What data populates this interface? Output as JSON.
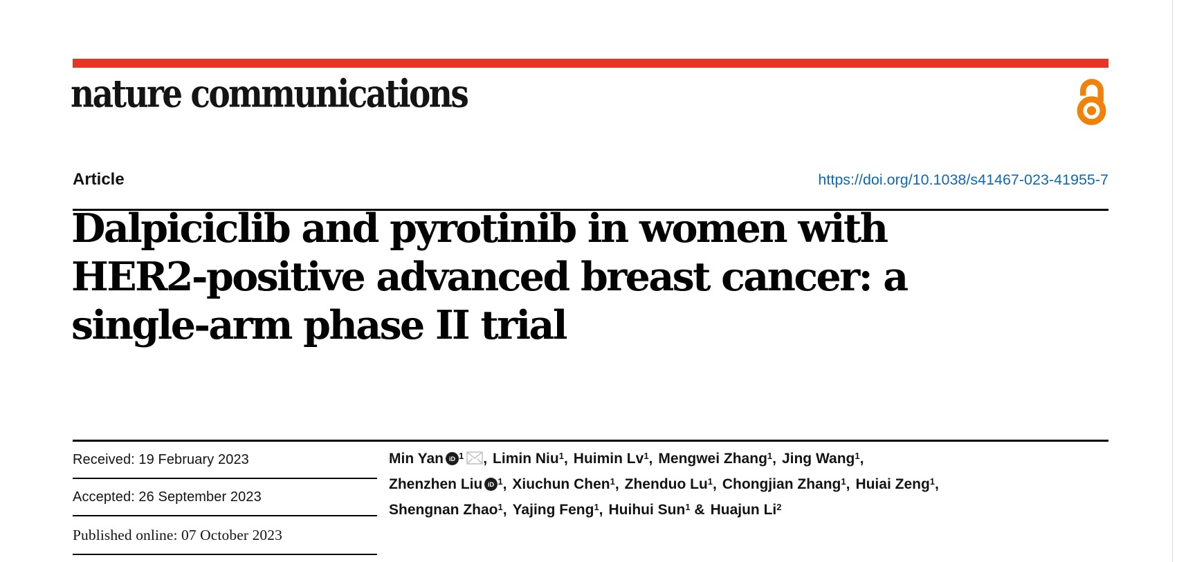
{
  "header": {
    "journal_logo": "nature communications",
    "article_type": "Article",
    "doi": "https://doi.org/10.1038/s41467-023-41955-7"
  },
  "title": {
    "lines": [
      "Dalpiciclib and pyrotinib in women with",
      "HER2-positive advanced breast cancer: a",
      "single-arm phase II trial"
    ]
  },
  "dates": [
    {
      "label": "Received:",
      "value": "19 February 2023"
    },
    {
      "label": "Accepted:",
      "value": "26 September 2023"
    },
    {
      "label": "Published online:",
      "value": "07 October 2023"
    }
  ],
  "authors": {
    "list": [
      {
        "name": "Min Yan",
        "sup": "1",
        "orcid": true,
        "email": true,
        "sep": ","
      },
      {
        "name": "Limin Niu",
        "sup": "1",
        "sep": ","
      },
      {
        "name": "Huimin Lv",
        "sup": "1",
        "sep": ","
      },
      {
        "name": "Mengwei Zhang",
        "sup": "1",
        "sep": ","
      },
      {
        "name": "Jing Wang",
        "sup": "1",
        "sep": ",",
        "break_after": true
      },
      {
        "name": "Zhenzhen Liu",
        "sup": "1",
        "orcid": true,
        "sep": ","
      },
      {
        "name": "Xiuchun Chen",
        "sup": "1",
        "sep": ","
      },
      {
        "name": "Zhenduo Lu",
        "sup": "1",
        "sep": ","
      },
      {
        "name": "Chongjian Zhang",
        "sup": "1",
        "sep": ","
      },
      {
        "name": "Huiai Zeng",
        "sup": "1",
        "sep": ",",
        "break_after": true
      },
      {
        "name": "Shengnan Zhao",
        "sup": "1",
        "sep": ","
      },
      {
        "name": "Yajing Feng",
        "sup": "1",
        "sep": ","
      },
      {
        "name": "Huihui Sun",
        "sup": "1",
        "sep": " &"
      },
      {
        "name": "Huajun Li",
        "sup": "2",
        "sep": ""
      }
    ]
  },
  "icons": {
    "open_access": "open-access-padlock-icon",
    "orcid": "orcid-id-icon",
    "email": "email-envelope-icon"
  },
  "colors": {
    "brand_red": "#e63524",
    "link_blue": "#0d69b0",
    "open_access_orange": "#f08209",
    "text_black": "#131313"
  }
}
